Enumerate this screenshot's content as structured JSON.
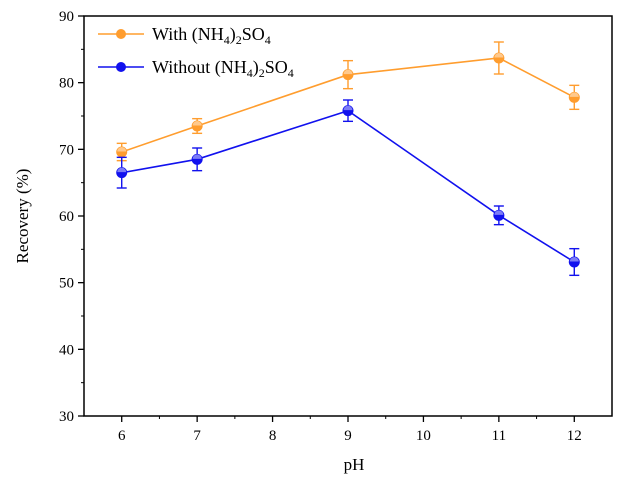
{
  "chart_data": {
    "type": "line",
    "title": "",
    "xlabel": "pH",
    "ylabel": "Recovery (%)",
    "xlim": [
      5.5,
      12.5
    ],
    "ylim": [
      30,
      90
    ],
    "x_ticks": [
      6,
      7,
      8,
      9,
      10,
      11,
      12
    ],
    "y_ticks": [
      30,
      40,
      50,
      60,
      70,
      80,
      90
    ],
    "grid": false,
    "legend_position": "top-left",
    "series": [
      {
        "id": "with",
        "legend": {
          "pre": "With (NH",
          "sub1": "4",
          "mid": ")",
          "sub2": "2",
          "post": "SO",
          "sub3": "4"
        },
        "color": "#ff9d2e",
        "x": [
          6,
          7,
          9,
          11,
          12
        ],
        "y": [
          69.6,
          73.5,
          81.2,
          83.7,
          77.8
        ],
        "err": [
          1.3,
          1.1,
          2.1,
          2.4,
          1.8
        ]
      },
      {
        "id": "without",
        "legend": {
          "pre": "Without (NH",
          "sub1": "4",
          "mid": ")",
          "sub2": "2",
          "post": "SO",
          "sub3": "4"
        },
        "color": "#1111ee",
        "x": [
          6,
          7,
          9,
          11,
          12
        ],
        "y": [
          66.5,
          68.5,
          75.8,
          60.1,
          53.1
        ],
        "err": [
          2.3,
          1.7,
          1.6,
          1.4,
          2.0
        ]
      }
    ]
  }
}
